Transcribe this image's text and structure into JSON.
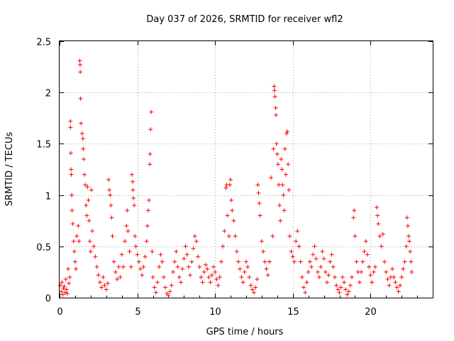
{
  "chart_data": {
    "type": "scatter",
    "title": "Day 037 of 2026, SRMTID for receiver wfl2",
    "xlabel": "GPS time / hours",
    "ylabel": "SRMTID / TECUs",
    "xlim": [
      0,
      24
    ],
    "ylim": [
      0,
      2.5
    ],
    "x_ticks": [
      0,
      5,
      10,
      15,
      20
    ],
    "x_tick_labels": [
      "0",
      "5",
      "10",
      "15",
      "20"
    ],
    "y_ticks": [
      0,
      0.5,
      1,
      1.5,
      2,
      2.5
    ],
    "y_tick_labels": [
      "0",
      "0.5",
      "1",
      "1.5",
      "2",
      "2.5"
    ],
    "grid": true,
    "marker": "+",
    "series": [
      {
        "name": "SRMTID",
        "color": "#ff0000",
        "points": [
          [
            0.05,
            0.12
          ],
          [
            0.1,
            0.06
          ],
          [
            0.15,
            0.15
          ],
          [
            0.2,
            0.03
          ],
          [
            0.25,
            0.09
          ],
          [
            0.3,
            0.11
          ],
          [
            0.35,
            0.05
          ],
          [
            0.4,
            0.18
          ],
          [
            0.45,
            0.08
          ],
          [
            0.5,
            0.04
          ],
          [
            0.55,
            0.28
          ],
          [
            0.6,
            0.14
          ],
          [
            0.65,
            0.2
          ],
          [
            0.7,
            1.72
          ],
          [
            0.7,
            1.66
          ],
          [
            0.72,
            1.41
          ],
          [
            0.74,
            1.25
          ],
          [
            0.75,
            1.2
          ],
          [
            0.78,
            1.0
          ],
          [
            0.8,
            0.85
          ],
          [
            0.85,
            0.72
          ],
          [
            0.9,
            0.55
          ],
          [
            0.95,
            0.45
          ],
          [
            1.0,
            0.35
          ],
          [
            1.05,
            0.28
          ],
          [
            1.1,
            0.6
          ],
          [
            1.2,
            0.7
          ],
          [
            1.25,
            0.55
          ],
          [
            1.3,
            2.31
          ],
          [
            1.32,
            2.27
          ],
          [
            1.33,
            2.2
          ],
          [
            1.35,
            1.94
          ],
          [
            1.38,
            1.7
          ],
          [
            1.45,
            1.6
          ],
          [
            1.5,
            1.55
          ],
          [
            1.52,
            1.45
          ],
          [
            1.55,
            1.35
          ],
          [
            1.6,
            1.2
          ],
          [
            1.65,
            1.1
          ],
          [
            1.7,
            0.9
          ],
          [
            1.75,
            0.8
          ],
          [
            1.8,
            1.08
          ],
          [
            1.85,
            0.95
          ],
          [
            1.9,
            0.75
          ],
          [
            1.95,
            0.55
          ],
          [
            2.0,
            0.45
          ],
          [
            2.05,
            1.05
          ],
          [
            2.1,
            0.65
          ],
          [
            2.2,
            0.5
          ],
          [
            2.3,
            0.4
          ],
          [
            2.4,
            0.3
          ],
          [
            2.5,
            0.22
          ],
          [
            2.6,
            0.15
          ],
          [
            2.7,
            0.1
          ],
          [
            2.8,
            0.2
          ],
          [
            2.9,
            0.12
          ],
          [
            3.0,
            0.08
          ],
          [
            3.1,
            0.14
          ],
          [
            3.15,
            1.15
          ],
          [
            3.2,
            1.05
          ],
          [
            3.25,
            1.0
          ],
          [
            3.3,
            0.9
          ],
          [
            3.35,
            0.78
          ],
          [
            3.4,
            0.6
          ],
          [
            3.5,
            0.35
          ],
          [
            3.6,
            0.25
          ],
          [
            3.7,
            0.18
          ],
          [
            3.8,
            0.3
          ],
          [
            3.9,
            0.2
          ],
          [
            4.0,
            0.42
          ],
          [
            4.1,
            0.3
          ],
          [
            4.2,
            0.55
          ],
          [
            4.3,
            0.7
          ],
          [
            4.35,
            0.85
          ],
          [
            4.4,
            0.65
          ],
          [
            4.5,
            0.45
          ],
          [
            4.6,
            0.3
          ],
          [
            4.65,
            1.2
          ],
          [
            4.7,
            1.13
          ],
          [
            4.72,
            1.05
          ],
          [
            4.75,
            0.97
          ],
          [
            4.8,
            0.9
          ],
          [
            4.85,
            0.6
          ],
          [
            4.9,
            0.5
          ],
          [
            5.0,
            0.42
          ],
          [
            5.1,
            0.35
          ],
          [
            5.2,
            0.28
          ],
          [
            5.3,
            0.22
          ],
          [
            5.4,
            0.3
          ],
          [
            5.5,
            0.4
          ],
          [
            5.6,
            0.55
          ],
          [
            5.65,
            0.7
          ],
          [
            5.7,
            0.85
          ],
          [
            5.75,
            0.95
          ],
          [
            5.8,
            1.3
          ],
          [
            5.82,
            1.4
          ],
          [
            5.85,
            1.64
          ],
          [
            5.9,
            1.81
          ],
          [
            5.95,
            0.45
          ],
          [
            6.0,
            0.2
          ],
          [
            6.1,
            0.1
          ],
          [
            6.2,
            0.05
          ],
          [
            6.3,
            0.15
          ],
          [
            6.4,
            0.3
          ],
          [
            6.5,
            0.42
          ],
          [
            6.6,
            0.35
          ],
          [
            6.7,
            0.2
          ],
          [
            6.8,
            0.1
          ],
          [
            6.9,
            0.04
          ],
          [
            7.0,
            0.02
          ],
          [
            7.1,
            0.06
          ],
          [
            7.2,
            0.12
          ],
          [
            7.3,
            0.25
          ],
          [
            7.4,
            0.35
          ],
          [
            7.5,
            0.45
          ],
          [
            7.6,
            0.3
          ],
          [
            7.7,
            0.2
          ],
          [
            7.8,
            0.15
          ],
          [
            7.9,
            0.28
          ],
          [
            8.0,
            0.38
          ],
          [
            8.1,
            0.5
          ],
          [
            8.2,
            0.42
          ],
          [
            8.3,
            0.3
          ],
          [
            8.4,
            0.22
          ],
          [
            8.5,
            0.35
          ],
          [
            8.6,
            0.48
          ],
          [
            8.7,
            0.6
          ],
          [
            8.8,
            0.55
          ],
          [
            8.9,
            0.4
          ],
          [
            9.0,
            0.3
          ],
          [
            9.1,
            0.2
          ],
          [
            9.2,
            0.15
          ],
          [
            9.3,
            0.25
          ],
          [
            9.4,
            0.32
          ],
          [
            9.5,
            0.28
          ],
          [
            9.6,
            0.2
          ],
          [
            9.7,
            0.15
          ],
          [
            9.8,
            0.22
          ],
          [
            9.9,
            0.3
          ],
          [
            10.0,
            0.25
          ],
          [
            10.1,
            0.18
          ],
          [
            10.2,
            0.12
          ],
          [
            10.3,
            0.2
          ],
          [
            10.4,
            0.35
          ],
          [
            10.5,
            0.5
          ],
          [
            10.6,
            0.65
          ],
          [
            10.7,
            1.07
          ],
          [
            10.75,
            1.1
          ],
          [
            10.8,
            0.8
          ],
          [
            10.9,
            0.6
          ],
          [
            10.95,
            1.1
          ],
          [
            11.0,
            1.15
          ],
          [
            11.05,
            0.95
          ],
          [
            11.1,
            0.85
          ],
          [
            11.2,
            0.75
          ],
          [
            11.3,
            0.6
          ],
          [
            11.4,
            0.45
          ],
          [
            11.5,
            0.35
          ],
          [
            11.6,
            0.28
          ],
          [
            11.7,
            0.2
          ],
          [
            11.8,
            0.15
          ],
          [
            11.9,
            0.25
          ],
          [
            12.0,
            0.35
          ],
          [
            12.1,
            0.3
          ],
          [
            12.2,
            0.2
          ],
          [
            12.3,
            0.12
          ],
          [
            12.4,
            0.08
          ],
          [
            12.5,
            0.05
          ],
          [
            12.6,
            0.1
          ],
          [
            12.7,
            0.18
          ],
          [
            12.75,
            1.1
          ],
          [
            12.8,
            1.02
          ],
          [
            12.85,
            0.92
          ],
          [
            12.9,
            0.8
          ],
          [
            13.0,
            0.55
          ],
          [
            13.1,
            0.45
          ],
          [
            13.2,
            0.35
          ],
          [
            13.3,
            0.28
          ],
          [
            13.4,
            0.22
          ],
          [
            13.5,
            0.35
          ],
          [
            13.6,
            1.17
          ],
          [
            13.7,
            0.6
          ],
          [
            13.75,
            1.45
          ],
          [
            13.8,
            2.06
          ],
          [
            13.82,
            2.02
          ],
          [
            13.85,
            1.96
          ],
          [
            13.9,
            1.85
          ],
          [
            13.92,
            1.78
          ],
          [
            13.95,
            1.5
          ],
          [
            14.0,
            1.4
          ],
          [
            14.05,
            1.3
          ],
          [
            14.1,
            1.1
          ],
          [
            14.15,
            0.9
          ],
          [
            14.2,
            0.75
          ],
          [
            14.25,
            1.35
          ],
          [
            14.3,
            1.25
          ],
          [
            14.35,
            1.1
          ],
          [
            14.4,
            1.0
          ],
          [
            14.45,
            0.85
          ],
          [
            14.5,
            1.45
          ],
          [
            14.55,
            1.2
          ],
          [
            14.6,
            1.6
          ],
          [
            14.65,
            1.62
          ],
          [
            14.7,
            1.3
          ],
          [
            14.75,
            1.05
          ],
          [
            14.8,
            0.6
          ],
          [
            14.9,
            0.45
          ],
          [
            15.0,
            0.4
          ],
          [
            15.1,
            0.35
          ],
          [
            15.2,
            0.55
          ],
          [
            15.3,
            0.65
          ],
          [
            15.4,
            0.5
          ],
          [
            15.5,
            0.35
          ],
          [
            15.6,
            0.2
          ],
          [
            15.7,
            0.1
          ],
          [
            15.8,
            0.05
          ],
          [
            15.9,
            0.15
          ],
          [
            16.0,
            0.25
          ],
          [
            16.1,
            0.35
          ],
          [
            16.2,
            0.3
          ],
          [
            16.3,
            0.42
          ],
          [
            16.4,
            0.5
          ],
          [
            16.5,
            0.38
          ],
          [
            16.6,
            0.25
          ],
          [
            16.7,
            0.2
          ],
          [
            16.8,
            0.3
          ],
          [
            16.9,
            0.45
          ],
          [
            17.0,
            0.38
          ],
          [
            17.1,
            0.25
          ],
          [
            17.2,
            0.15
          ],
          [
            17.3,
            0.22
          ],
          [
            17.4,
            0.35
          ],
          [
            17.5,
            0.42
          ],
          [
            17.6,
            0.3
          ],
          [
            17.7,
            0.2
          ],
          [
            17.8,
            0.12
          ],
          [
            17.9,
            0.08
          ],
          [
            18.0,
            0.05
          ],
          [
            18.1,
            0.1
          ],
          [
            18.2,
            0.2
          ],
          [
            18.3,
            0.15
          ],
          [
            18.4,
            0.08
          ],
          [
            18.5,
            0.03
          ],
          [
            18.6,
            0.06
          ],
          [
            18.7,
            0.12
          ],
          [
            18.8,
            0.2
          ],
          [
            18.9,
            0.78
          ],
          [
            18.95,
            0.85
          ],
          [
            19.0,
            0.6
          ],
          [
            19.1,
            0.35
          ],
          [
            19.2,
            0.25
          ],
          [
            19.3,
            0.15
          ],
          [
            19.4,
            0.25
          ],
          [
            19.5,
            0.35
          ],
          [
            19.6,
            0.45
          ],
          [
            19.7,
            0.55
          ],
          [
            19.8,
            0.42
          ],
          [
            19.9,
            0.3
          ],
          [
            20.0,
            0.22
          ],
          [
            20.1,
            0.15
          ],
          [
            20.2,
            0.25
          ],
          [
            20.3,
            0.3
          ],
          [
            20.4,
            0.88
          ],
          [
            20.45,
            0.8
          ],
          [
            20.5,
            0.72
          ],
          [
            20.6,
            0.6
          ],
          [
            20.7,
            0.5
          ],
          [
            20.8,
            0.62
          ],
          [
            20.9,
            0.35
          ],
          [
            21.0,
            0.25
          ],
          [
            21.1,
            0.18
          ],
          [
            21.2,
            0.12
          ],
          [
            21.3,
            0.2
          ],
          [
            21.4,
            0.28
          ],
          [
            21.5,
            0.2
          ],
          [
            21.6,
            0.15
          ],
          [
            21.7,
            0.1
          ],
          [
            21.8,
            0.06
          ],
          [
            21.9,
            0.12
          ],
          [
            22.0,
            0.2
          ],
          [
            22.1,
            0.28
          ],
          [
            22.2,
            0.35
          ],
          [
            22.3,
            0.5
          ],
          [
            22.35,
            0.78
          ],
          [
            22.4,
            0.7
          ],
          [
            22.45,
            0.6
          ],
          [
            22.5,
            0.55
          ],
          [
            22.55,
            0.45
          ],
          [
            22.6,
            0.35
          ],
          [
            22.65,
            0.25
          ]
        ]
      }
    ]
  }
}
